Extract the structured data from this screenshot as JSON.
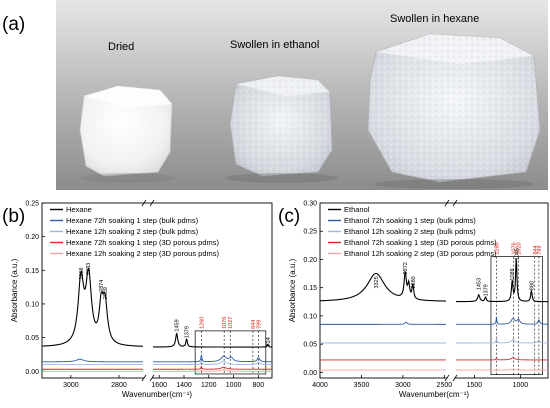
{
  "panel_a": {
    "letter": "(a)",
    "label_dried": "Dried",
    "label_ethanol": "Swollen in ethanol",
    "label_hexane": "Swollen in hexane"
  },
  "panel_b": {
    "letter": "(b)"
  },
  "panel_c": {
    "letter": "(c)"
  },
  "colors": {
    "black": "#000000",
    "blue": "#2f5aa8",
    "light_blue": "#9db8df",
    "red": "#d62728",
    "light_red": "#f2a3a3",
    "annotation_red": "#e0201a"
  },
  "chart_data": [
    {
      "id": "b",
      "type": "line",
      "xlabel": "Wavenumber(cm⁻¹)",
      "ylabel": "Absorbance (a.u.)",
      "ylim": [
        -0.01,
        0.25
      ],
      "yticks": [
        "0.25",
        "0.20",
        "0.15",
        "0.10",
        "0.05",
        "0.00"
      ],
      "xticks": [
        [
          "3000",
          3000
        ],
        [
          "2800",
          2800
        ],
        [
          "1600",
          1600
        ],
        [
          "1400",
          1400
        ],
        [
          "1200",
          1200
        ],
        [
          "1000",
          1000
        ],
        [
          "800",
          800
        ]
      ],
      "legend_position": "top-left",
      "series": [
        {
          "name": "Hexane",
          "color_key": "black"
        },
        {
          "name": "Hexane 72h soaking 1 step (bulk pdms)",
          "color_key": "blue"
        },
        {
          "name": "Hexane 12h soaking 2 step (bulk pdms)",
          "color_key": "light_blue"
        },
        {
          "name": "Hexane 72h soaking 1 step (3D porous pdms)",
          "color_key": "red"
        },
        {
          "name": "Hexane 12h soaking 2 step (3D porous pdms)",
          "color_key": "light_red"
        }
      ],
      "peak_labels": [
        {
          "text": "2958",
          "x": 2958,
          "y": 0.133
        },
        {
          "text": "2933",
          "x": 2928,
          "y": 0.14
        },
        {
          "text": "2874",
          "x": 2874,
          "y": 0.115
        },
        {
          "text": "2859",
          "x": 2857,
          "y": 0.104
        },
        {
          "text": "1459",
          "x": 1459,
          "y": 0.056
        },
        {
          "text": "1379",
          "x": 1379,
          "y": 0.046
        },
        {
          "text": "724",
          "x": 724,
          "y": 0.034
        }
      ],
      "marked_peaks": [
        {
          "text": "1260",
          "x": 1260
        },
        {
          "text": "1076",
          "x": 1076
        },
        {
          "text": "1027",
          "x": 1027
        },
        {
          "text": "844",
          "x": 844
        },
        {
          "text": "799",
          "x": 799
        }
      ]
    },
    {
      "id": "c",
      "type": "line",
      "xlabel": "Wavenumber(cm⁻¹)",
      "ylabel": "Absorbance (a.u.)",
      "ylim": [
        -0.01,
        0.3
      ],
      "yticks": [
        "0.30",
        "0.25",
        "0.20",
        "0.15",
        "0.10",
        "0.05",
        "0.00"
      ],
      "xticks": [
        [
          "4000",
          4000
        ],
        [
          "3500",
          3500
        ],
        [
          "3000",
          3000
        ],
        [
          "2500",
          2500
        ],
        [
          "1500",
          1500
        ],
        [
          "1000",
          1000
        ]
      ],
      "legend_position": "top-left",
      "series": [
        {
          "name": "Ethanol",
          "color_key": "black"
        },
        {
          "name": "Ethanol 72h soaking 1 step (bulk pdms)",
          "color_key": "blue"
        },
        {
          "name": "Ethanol 12h soaking 2 step (bulk pdms)",
          "color_key": "light_blue"
        },
        {
          "name": "Ethanol 72h soaking 1 step (3D porous pdms)",
          "color_key": "red"
        },
        {
          "name": "Ethanol 12h soaking 2 step (3D porous pdms)",
          "color_key": "light_red"
        }
      ],
      "peak_labels": [
        {
          "text": "3325",
          "x": 3325,
          "y": 0.145
        },
        {
          "text": "2972",
          "x": 2972,
          "y": 0.17
        },
        {
          "text": "2880",
          "x": 2880,
          "y": 0.145
        },
        {
          "text": "1453",
          "x": 1453,
          "y": 0.142
        },
        {
          "text": "1379",
          "x": 1379,
          "y": 0.131
        },
        {
          "text": "1089",
          "x": 1089,
          "y": 0.159
        },
        {
          "text": "1045",
          "x": 1045,
          "y": 0.195
        },
        {
          "text": "880",
          "x": 880,
          "y": 0.142
        }
      ],
      "marked_peaks": [
        {
          "text": "1260",
          "x": 1260
        },
        {
          "text": "1076",
          "x": 1076
        },
        {
          "text": "1020",
          "x": 1020
        },
        {
          "text": "844",
          "x": 844
        },
        {
          "text": "799",
          "x": 799
        }
      ]
    }
  ]
}
